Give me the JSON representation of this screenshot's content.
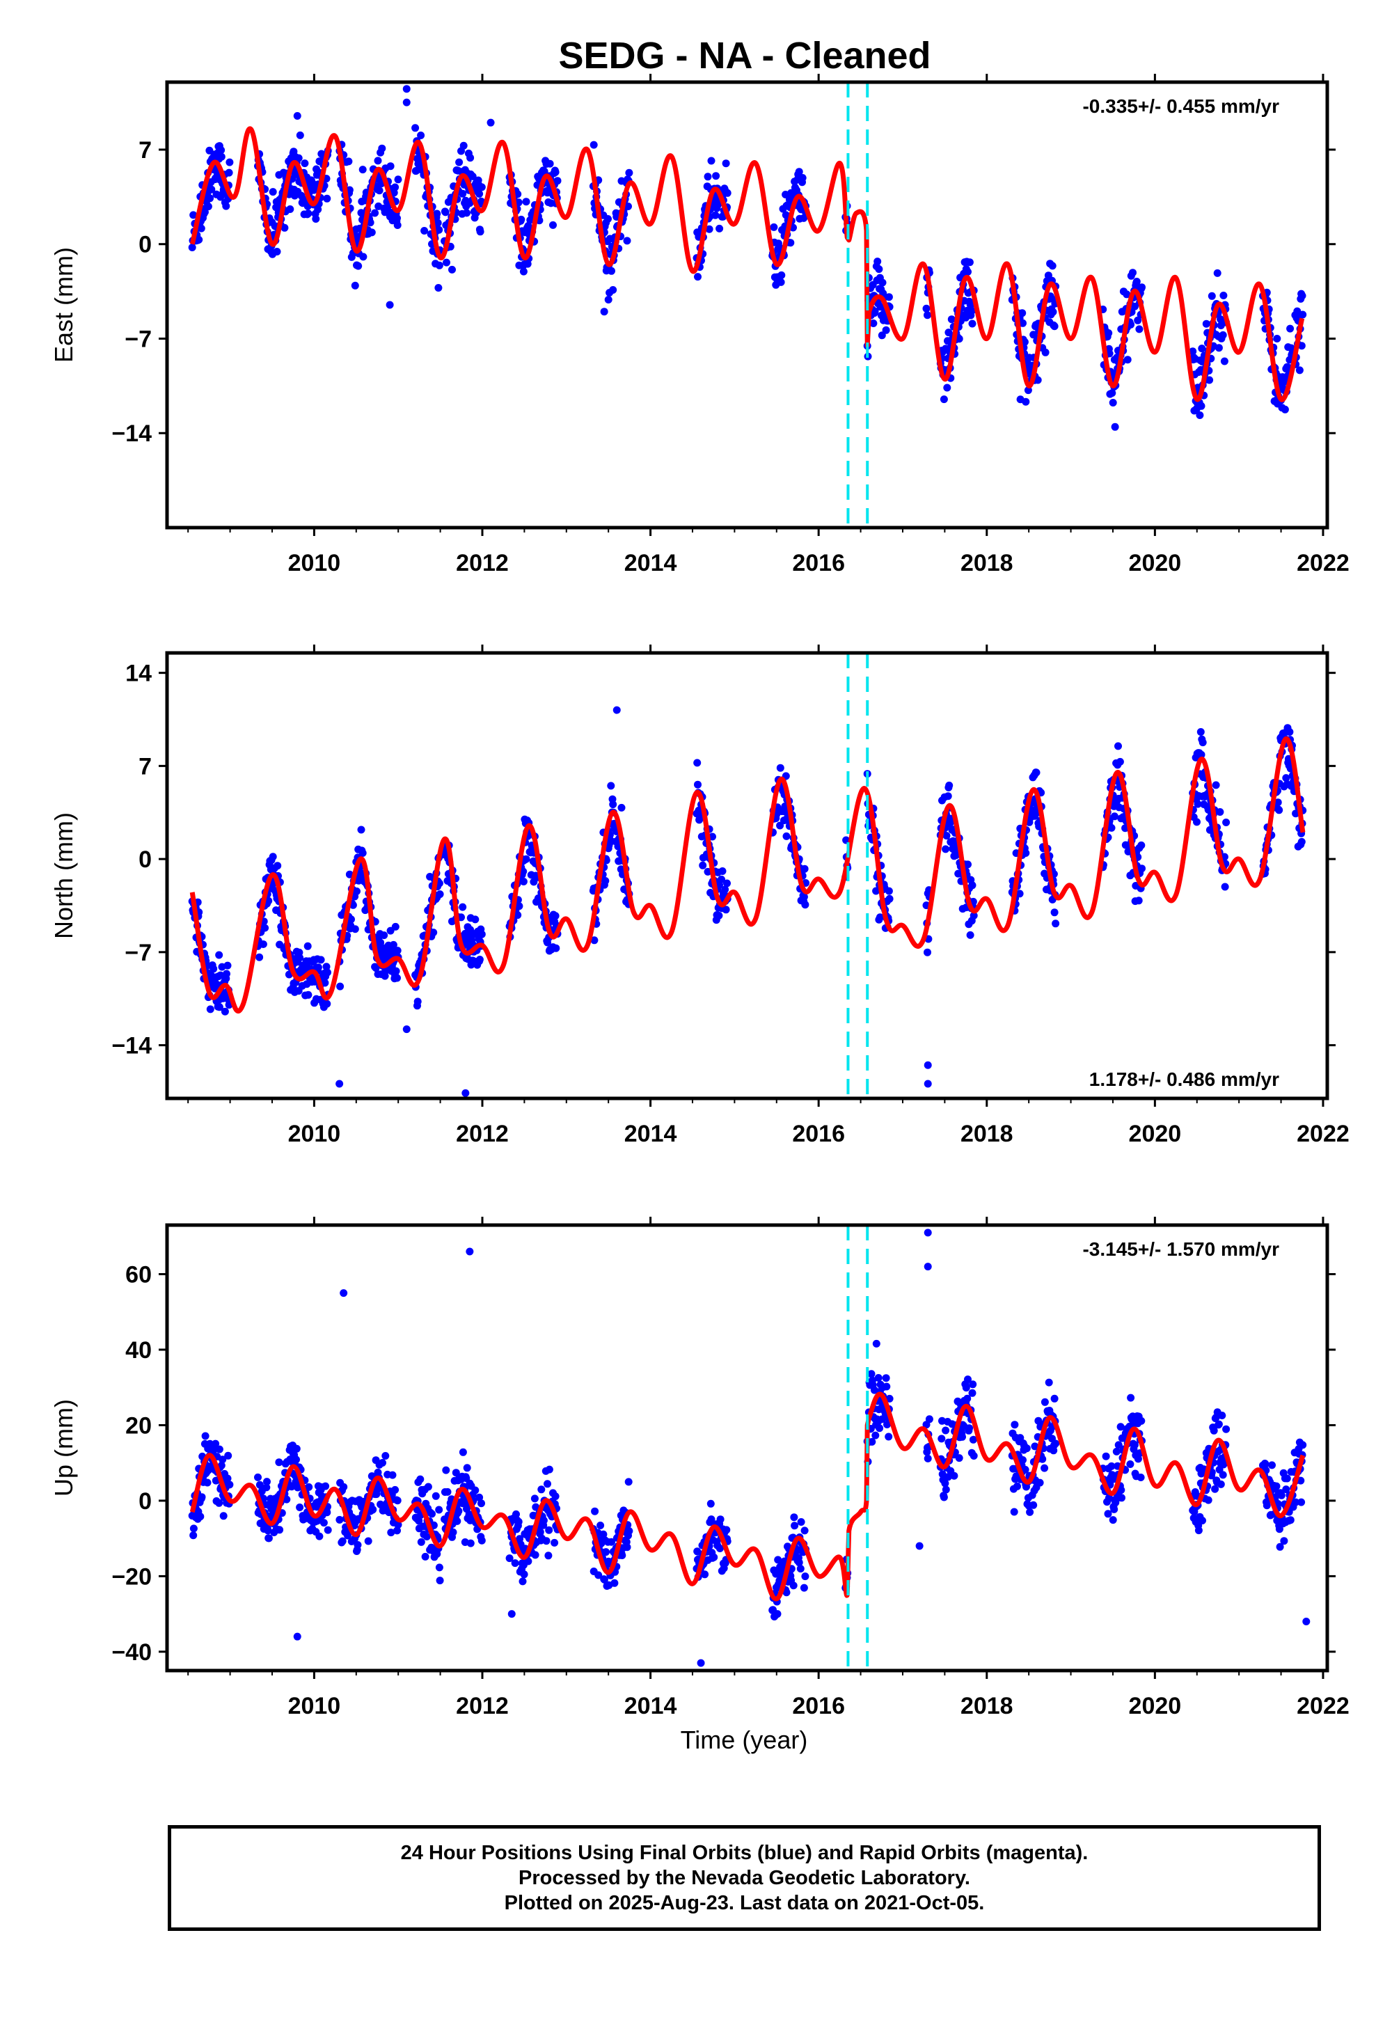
{
  "title": "SEDG  - NA - Cleaned",
  "xlabel": "Time (year)",
  "caption": {
    "line1": "24 Hour Positions Using Final Orbits (blue) and Rapid Orbits (magenta).",
    "line2": "Processed by the Nevada Geodetic Laboratory.",
    "line3": "Plotted on 2025-Aug-23. Last data on 2021-Oct-05."
  },
  "colors": {
    "data": "#0000ff",
    "model": "#ff0000",
    "offsets": "#00e5ee",
    "frame": "#000000"
  },
  "chart_data": [
    {
      "type": "scatter",
      "component": "east",
      "ylabel": "East (mm)",
      "rate": "-0.335+/- 0.455 mm/yr",
      "rate_position": "top-right",
      "xlim": [
        2008.25,
        2022.05
      ],
      "ylim": [
        -21,
        12
      ],
      "xticks": [
        2010,
        2012,
        2014,
        2016,
        2018,
        2020,
        2022
      ],
      "xticklabels": [
        "2010",
        "2012",
        "2014",
        "2016",
        "2018",
        "2020",
        "2022"
      ],
      "yticks": [
        7,
        0,
        -7,
        -14
      ],
      "yticklabels": [
        "7",
        "0",
        "−7",
        "−14"
      ],
      "offset_lines": [
        2016.35,
        2016.58
      ],
      "grid": false,
      "model": {
        "name": "model",
        "x": [
          2008.55,
          2008.8,
          2009.05,
          2009.25,
          2009.5,
          2009.75,
          2010.0,
          2010.25,
          2010.5,
          2010.75,
          2011.0,
          2011.25,
          2011.5,
          2011.75,
          2012.0,
          2012.25,
          2012.5,
          2012.75,
          2013.0,
          2013.25,
          2013.5,
          2013.75,
          2014.0,
          2014.25,
          2014.5,
          2014.75,
          2015.0,
          2015.25,
          2015.5,
          2015.75,
          2016.0,
          2016.25,
          2016.34,
          2016.36,
          2016.45,
          2016.57,
          2016.58,
          2016.6,
          2016.75,
          2017.0,
          2017.25,
          2017.5,
          2017.75,
          2018.0,
          2018.25,
          2018.5,
          2018.75,
          2019.0,
          2019.25,
          2019.5,
          2019.75,
          2020.0,
          2020.25,
          2020.5,
          2020.75,
          2021.0,
          2021.25,
          2021.5,
          2021.75
        ],
        "y": [
          0,
          6,
          3.5,
          8.5,
          0,
          6,
          3,
          8,
          -0.5,
          5.5,
          2.5,
          7.5,
          -1,
          5,
          2.5,
          7.5,
          -1,
          5,
          2,
          7,
          -1.5,
          4.5,
          1.5,
          6.5,
          -2,
          4,
          1.5,
          6,
          -1.5,
          3.5,
          1,
          6,
          0.5,
          0.3,
          2.3,
          1,
          -7.5,
          -5,
          -4,
          -7,
          -1.5,
          -10,
          -2.5,
          -7,
          -1.5,
          -10.5,
          -3,
          -7,
          -2.5,
          -10.5,
          -3.5,
          -8,
          -2.5,
          -11.5,
          -4.5,
          -8,
          -3,
          -11.5,
          -5.5
        ]
      },
      "series": [
        {
          "name": "",
          "t0": 2008.55,
          "t1": 2016.35,
          "amp": 3.8,
          "base": 1.5,
          "slope": 0.0,
          "jitter": 1.2,
          "start": 2008.55,
          "end": 2016.35
        },
        {
          "name": "",
          "t0": 2016.58,
          "t1": 2021.76,
          "amp": 3.5,
          "base": -6.0,
          "slope": -0.7,
          "jitter": 1.3,
          "start": 2016.58,
          "end": 2021.76
        }
      ],
      "outliers": [
        [
          2011.1,
          11.5
        ],
        [
          2011.1,
          10.5
        ],
        [
          2010.9,
          -4.5
        ],
        [
          2013.45,
          -5
        ],
        [
          2012.1,
          9
        ],
        [
          2018.4,
          -11.5
        ],
        [
          2009.8,
          9.5
        ]
      ]
    },
    {
      "type": "scatter",
      "component": "north",
      "ylabel": "North (mm)",
      "rate": "1.178+/- 0.486 mm/yr",
      "rate_position": "bottom-right",
      "xlim": [
        2008.25,
        2022.05
      ],
      "ylim": [
        -18,
        15.5
      ],
      "xticks": [
        2010,
        2012,
        2014,
        2016,
        2018,
        2020,
        2022
      ],
      "xticklabels": [
        "2010",
        "2012",
        "2014",
        "2016",
        "2018",
        "2020",
        "2022"
      ],
      "yticks": [
        14,
        7,
        0,
        -7,
        -14
      ],
      "yticklabels": [
        "14",
        "7",
        "0",
        "−7",
        "−14"
      ],
      "offset_lines": [
        2016.35,
        2016.58
      ],
      "grid": false,
      "model": {
        "name": "model",
        "x": [
          2008.55,
          2008.75,
          2008.95,
          2009.15,
          2009.5,
          2009.75,
          2010.0,
          2010.2,
          2010.55,
          2010.75,
          2011.0,
          2011.25,
          2011.55,
          2011.75,
          2012.0,
          2012.25,
          2012.55,
          2012.8,
          2013.0,
          2013.25,
          2013.55,
          2013.8,
          2014.0,
          2014.25,
          2014.55,
          2014.8,
          2015.0,
          2015.25,
          2015.55,
          2015.8,
          2016.0,
          2016.25,
          2016.55,
          2016.8,
          2017.0,
          2017.25,
          2017.55,
          2017.8,
          2018.0,
          2018.25,
          2018.55,
          2018.8,
          2019.0,
          2019.25,
          2019.55,
          2019.8,
          2020.0,
          2020.25,
          2020.55,
          2020.8,
          2021.0,
          2021.25,
          2021.55,
          2021.76
        ],
        "y": [
          -2.5,
          -10,
          -9.5,
          -11,
          -1.2,
          -8.5,
          -8.5,
          -10,
          0,
          -7.5,
          -7.5,
          -9,
          1.5,
          -6.5,
          -6.5,
          -8,
          2.5,
          -5.5,
          -4.5,
          -6.5,
          3.5,
          -4,
          -3.5,
          -5.5,
          5,
          -3,
          -2.5,
          -4.5,
          6,
          -2,
          -1.5,
          -2.5,
          5.3,
          -4.5,
          -5,
          -6,
          4,
          -3.5,
          -3,
          -5,
          5.2,
          -2.5,
          -2,
          -4,
          6.5,
          -1.5,
          -1,
          -2.7,
          7.5,
          -0.5,
          0,
          -1.5,
          9,
          2
        ]
      },
      "series": [
        {
          "name": "",
          "t0": 2008.55,
          "t1": 2016.35,
          "amp": 4.5,
          "base": -5.5,
          "slope": 0.95,
          "jitter": 1.0,
          "start": 2008.55,
          "end": 2016.35
        },
        {
          "name": "",
          "t0": 2016.58,
          "t1": 2021.76,
          "amp": 5.0,
          "base": -2.5,
          "slope": 1.9,
          "jitter": 1.2,
          "start": 2016.58,
          "end": 2021.76
        }
      ],
      "outliers": [
        [
          2010.3,
          -16.9
        ],
        [
          2011.8,
          -17.6
        ],
        [
          2017.3,
          -15.5
        ],
        [
          2017.3,
          -16.9
        ],
        [
          2011.1,
          -12.8
        ],
        [
          2013.6,
          11.2
        ]
      ]
    },
    {
      "type": "scatter",
      "component": "up",
      "ylabel": "Up (mm)",
      "rate": "-3.145+/- 1.570 mm/yr",
      "rate_position": "top-right",
      "xlim": [
        2008.25,
        2022.05
      ],
      "ylim": [
        -45,
        73
      ],
      "xticks": [
        2010,
        2012,
        2014,
        2016,
        2018,
        2020,
        2022
      ],
      "xticklabels": [
        "2010",
        "2012",
        "2014",
        "2016",
        "2018",
        "2020",
        "2022"
      ],
      "yticks": [
        60,
        40,
        20,
        0,
        -20,
        -40
      ],
      "yticklabels": [
        "60",
        "40",
        "20",
        "0",
        "−20",
        "−40"
      ],
      "offset_lines": [
        2016.35,
        2016.58
      ],
      "grid": false,
      "model": {
        "name": "model",
        "x": [
          2008.55,
          2008.75,
          2009.0,
          2009.25,
          2009.5,
          2009.75,
          2010.0,
          2010.25,
          2010.5,
          2010.75,
          2011.0,
          2011.25,
          2011.5,
          2011.75,
          2012.0,
          2012.25,
          2012.5,
          2012.75,
          2013.0,
          2013.25,
          2013.5,
          2013.75,
          2014.0,
          2014.25,
          2014.5,
          2014.75,
          2015.0,
          2015.25,
          2015.5,
          2015.75,
          2016.0,
          2016.25,
          2016.34,
          2016.36,
          2016.5,
          2016.57,
          2016.58,
          2016.6,
          2016.75,
          2017.0,
          2017.25,
          2017.5,
          2017.75,
          2018.0,
          2018.25,
          2018.5,
          2018.75,
          2019.0,
          2019.25,
          2019.5,
          2019.75,
          2020.0,
          2020.25,
          2020.5,
          2020.75,
          2021.0,
          2021.25,
          2021.5,
          2021.76
        ],
        "y": [
          -3,
          12,
          0,
          4,
          -6,
          9,
          -4,
          3,
          -9,
          6,
          -5,
          -1,
          -12,
          3,
          -7,
          -4,
          -15,
          0,
          -10,
          -5,
          -19,
          -3,
          -13,
          -9,
          -22,
          -7,
          -17,
          -13,
          -26,
          -10,
          -20,
          -15,
          -25,
          -8,
          -3,
          0,
          20,
          22,
          28,
          14,
          19,
          9,
          25,
          11,
          15,
          5,
          22,
          9,
          12,
          2,
          19,
          4,
          10,
          -1,
          16,
          3,
          8,
          -4,
          12
        ]
      },
      "series": [
        {
          "name": "",
          "t0": 2008.55,
          "t1": 2016.35,
          "amp": 9,
          "base": -2,
          "slope": -1.8,
          "jitter": 4.0,
          "start": 2008.55,
          "end": 2016.35
        },
        {
          "name": "",
          "t0": 2016.58,
          "t1": 2021.76,
          "amp": 8,
          "base": 18,
          "slope": -3.5,
          "jitter": 4.5,
          "start": 2016.58,
          "end": 2021.76
        }
      ],
      "outliers": [
        [
          2010.35,
          55
        ],
        [
          2011.85,
          66
        ],
        [
          2009.8,
          -36
        ],
        [
          2014.6,
          -43
        ],
        [
          2017.3,
          71
        ],
        [
          2017.3,
          62
        ],
        [
          2017.2,
          -12
        ],
        [
          2012.35,
          -30
        ],
        [
          2021.8,
          -32
        ]
      ]
    }
  ]
}
